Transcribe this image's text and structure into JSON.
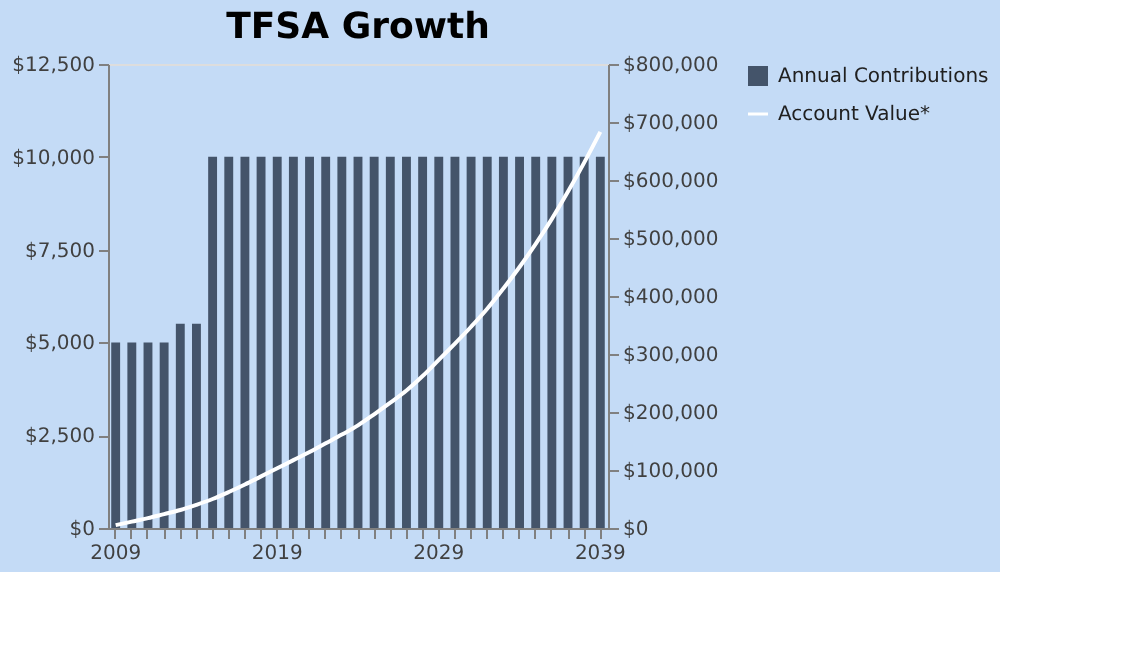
{
  "chart_data": {
    "type": "bar",
    "title": "TFSA Growth",
    "categories": [
      "2009",
      null,
      null,
      null,
      null,
      null,
      null,
      null,
      null,
      null,
      "2019",
      null,
      null,
      null,
      null,
      null,
      null,
      null,
      null,
      null,
      "2029",
      null,
      null,
      null,
      null,
      null,
      null,
      null,
      null,
      null,
      "2039"
    ],
    "series": [
      {
        "name": "Annual Contributions",
        "color": "#44546a",
        "values": [
          5000,
          5000,
          5000,
          5000,
          5500,
          5500,
          10000,
          10000,
          10000,
          10000,
          10000,
          10000,
          10000,
          10000,
          10000,
          10000,
          10000,
          10000,
          10000,
          10000,
          10000,
          10000,
          10000,
          10000,
          10000,
          10000,
          10000,
          10000,
          10000,
          10000,
          10000
        ]
      },
      {
        "name": "Account Value*",
        "type": "line",
        "axis": "y2",
        "color": "#ffffff",
        "values": [
          5000,
          11000,
          17000,
          24000,
          31000,
          40000,
          50000,
          62000,
          75000,
          89000,
          103000,
          117000,
          131000,
          146000,
          161000,
          177000,
          196000,
          216000,
          237000,
          262000,
          290000,
          318000,
          347000,
          378000,
          413000,
          450000,
          490000,
          533000,
          580000,
          630000,
          683000
        ]
      }
    ],
    "ylim": [
      0,
      12500
    ],
    "yticks": [
      {
        "value": 0,
        "label": "$0"
      },
      {
        "value": 2500,
        "label": "$2,500"
      },
      {
        "value": 5000,
        "label": "$5,000"
      },
      {
        "value": 7500,
        "label": "$7,500"
      },
      {
        "value": 10000,
        "label": "$10,000"
      },
      {
        "value": 12500,
        "label": "$12,500"
      }
    ],
    "y2lim": [
      0,
      800000
    ],
    "y2ticks": [
      {
        "value": 0,
        "label": "$0"
      },
      {
        "value": 100000,
        "label": "$100,000"
      },
      {
        "value": 200000,
        "label": "$200,000"
      },
      {
        "value": 300000,
        "label": "$300,000"
      },
      {
        "value": 400000,
        "label": "$400,000"
      },
      {
        "value": 500000,
        "label": "$500,000"
      },
      {
        "value": 600000,
        "label": "$600,000"
      },
      {
        "value": 700000,
        "label": "$700,000"
      },
      {
        "value": 800000,
        "label": "$800,000"
      }
    ],
    "grid": false,
    "legend": "right"
  }
}
